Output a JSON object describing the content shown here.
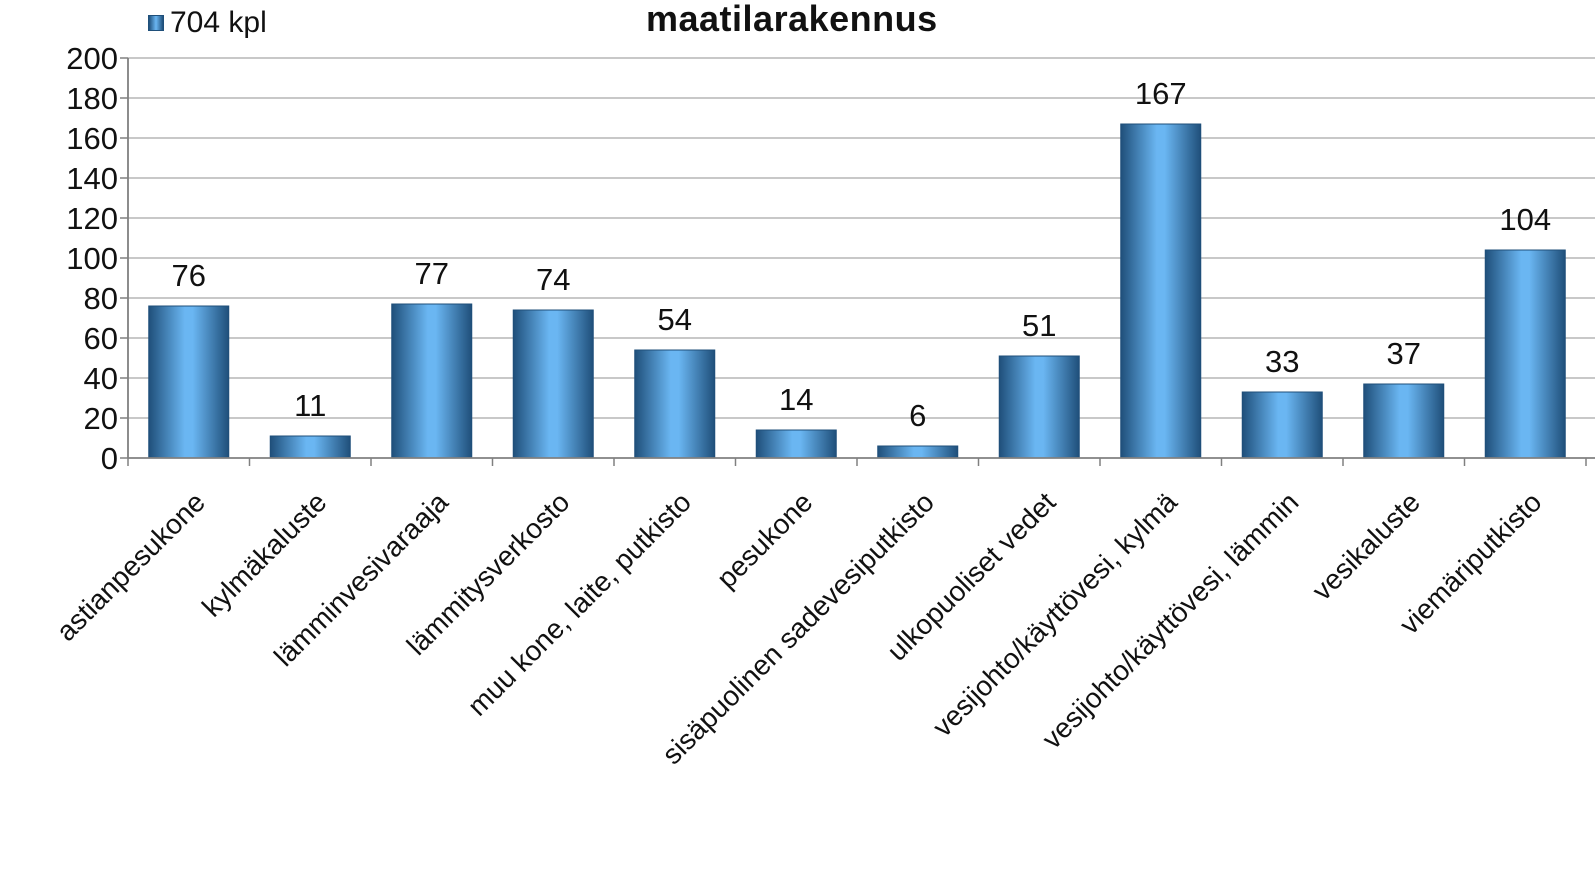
{
  "chart_data": {
    "type": "bar",
    "title": "maatilarakennus",
    "legend": {
      "label": "704 kpl",
      "placement": "top-left"
    },
    "colors": {
      "bar_mid": "#6ab6f2",
      "bar_edge": "#1f4f7a",
      "grid": "#a8a8a8",
      "axis": "#808080",
      "text": "#111111"
    },
    "categories": [
      "astianpesukone",
      "kylmäkaluste",
      "lämminvesivaraaja",
      "lämmitysverkosto",
      "muu kone, laite, putkisto",
      "pesukone",
      "sisäpuolinen sadevesiputkisto",
      "ulkopuoliset vedet",
      "vesijohto/käyttövesi, kylmä",
      "vesijohto/käyttövesi, lämmin",
      "vesikaluste",
      "viemäriputkisto"
    ],
    "series": [
      {
        "name": "704 kpl",
        "values": [
          76,
          11,
          77,
          74,
          54,
          14,
          6,
          51,
          167,
          33,
          37,
          104
        ]
      }
    ],
    "y_ticks": [
      "0",
      "20",
      "40",
      "60",
      "80",
      "100",
      "120",
      "140",
      "160",
      "180",
      "200"
    ],
    "ylim": [
      0,
      200
    ],
    "grid": true,
    "data_labels": true
  }
}
